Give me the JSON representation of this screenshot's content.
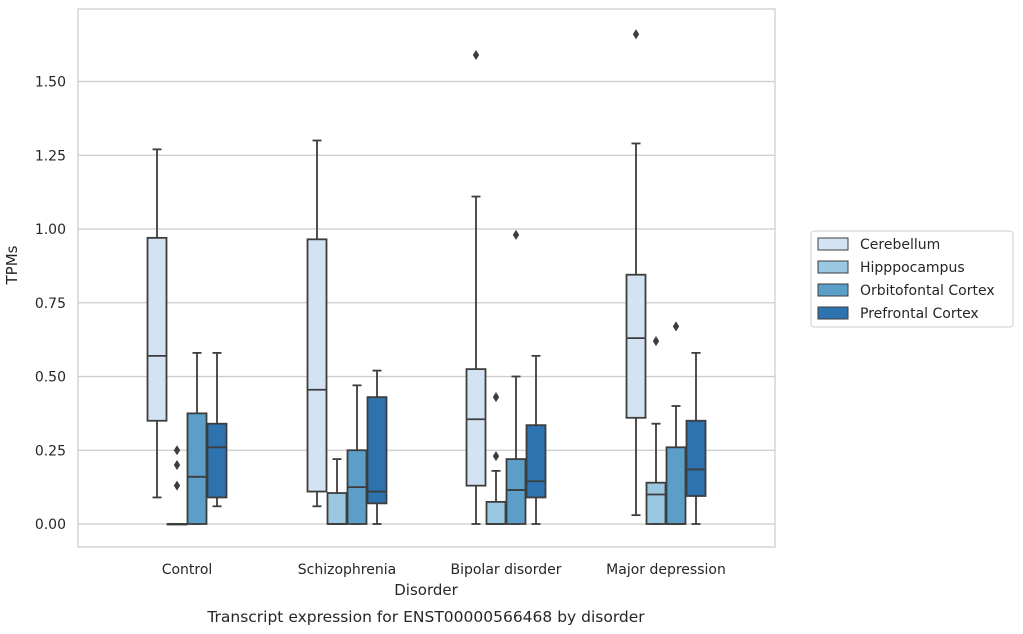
{
  "chart_data": {
    "type": "box",
    "xlabel": "Disorder",
    "ylabel": "TPMs",
    "caption": "Transcript expression for ENST00000566468 by disorder",
    "ylim": [
      -0.08,
      1.74
    ],
    "yticks": [
      0.0,
      0.25,
      0.5,
      0.75,
      1.0,
      1.25,
      1.5
    ],
    "ytick_labels": [
      "0.00",
      "0.25",
      "0.50",
      "0.75",
      "1.00",
      "1.25",
      "1.50"
    ],
    "grid": "horizontal",
    "legend_position": "outside-right",
    "categories": [
      "Control",
      "Schizophrenia",
      "Bipolar disorder",
      "Major depression"
    ],
    "series": [
      {
        "name": "Cerebellum",
        "color": "#d3e3f3",
        "boxes": [
          {
            "whislo": 0.09,
            "q1": 0.35,
            "med": 0.57,
            "q3": 0.97,
            "whishi": 1.27,
            "fliers": []
          },
          {
            "whislo": 0.06,
            "q1": 0.11,
            "med": 0.455,
            "q3": 0.965,
            "whishi": 1.3,
            "fliers": []
          },
          {
            "whislo": 0.0,
            "q1": 0.13,
            "med": 0.355,
            "q3": 0.525,
            "whishi": 1.11,
            "fliers": [
              1.59
            ]
          },
          {
            "whislo": 0.03,
            "q1": 0.36,
            "med": 0.63,
            "q3": 0.845,
            "whishi": 1.29,
            "fliers": [
              1.66
            ]
          }
        ]
      },
      {
        "name": "Hipppocampus",
        "color": "#9ac8e0",
        "boxes": [
          {
            "whislo": 0.0,
            "q1": 0.0,
            "med": 0.0,
            "q3": 0.0,
            "whishi": 0.0,
            "fliers": [
              0.13,
              0.2,
              0.25
            ]
          },
          {
            "whislo": 0.0,
            "q1": 0.0,
            "med": 0.0,
            "q3": 0.105,
            "whishi": 0.22,
            "fliers": []
          },
          {
            "whislo": 0.0,
            "q1": 0.0,
            "med": 0.0,
            "q3": 0.075,
            "whishi": 0.18,
            "fliers": [
              0.23,
              0.43
            ]
          },
          {
            "whislo": 0.0,
            "q1": 0.0,
            "med": 0.1,
            "q3": 0.14,
            "whishi": 0.34,
            "fliers": [
              0.62
            ]
          }
        ]
      },
      {
        "name": "Orbitofontal Cortex",
        "color": "#5a9ec9",
        "boxes": [
          {
            "whislo": 0.0,
            "q1": 0.0,
            "med": 0.16,
            "q3": 0.375,
            "whishi": 0.58,
            "fliers": []
          },
          {
            "whislo": 0.0,
            "q1": 0.0,
            "med": 0.125,
            "q3": 0.25,
            "whishi": 0.47,
            "fliers": []
          },
          {
            "whislo": 0.0,
            "q1": 0.0,
            "med": 0.115,
            "q3": 0.22,
            "whishi": 0.5,
            "fliers": [
              0.98
            ]
          },
          {
            "whislo": 0.0,
            "q1": 0.0,
            "med": 0.0,
            "q3": 0.26,
            "whishi": 0.4,
            "fliers": [
              0.67
            ]
          }
        ]
      },
      {
        "name": "Prefrontal Cortex",
        "color": "#2d73b0",
        "boxes": [
          {
            "whislo": 0.06,
            "q1": 0.09,
            "med": 0.26,
            "q3": 0.34,
            "whishi": 0.58,
            "fliers": []
          },
          {
            "whislo": 0.0,
            "q1": 0.07,
            "med": 0.11,
            "q3": 0.43,
            "whishi": 0.52,
            "fliers": []
          },
          {
            "whislo": 0.0,
            "q1": 0.09,
            "med": 0.145,
            "q3": 0.335,
            "whishi": 0.57,
            "fliers": []
          },
          {
            "whislo": 0.0,
            "q1": 0.095,
            "med": 0.185,
            "q3": 0.35,
            "whishi": 0.58,
            "fliers": []
          }
        ]
      }
    ]
  }
}
